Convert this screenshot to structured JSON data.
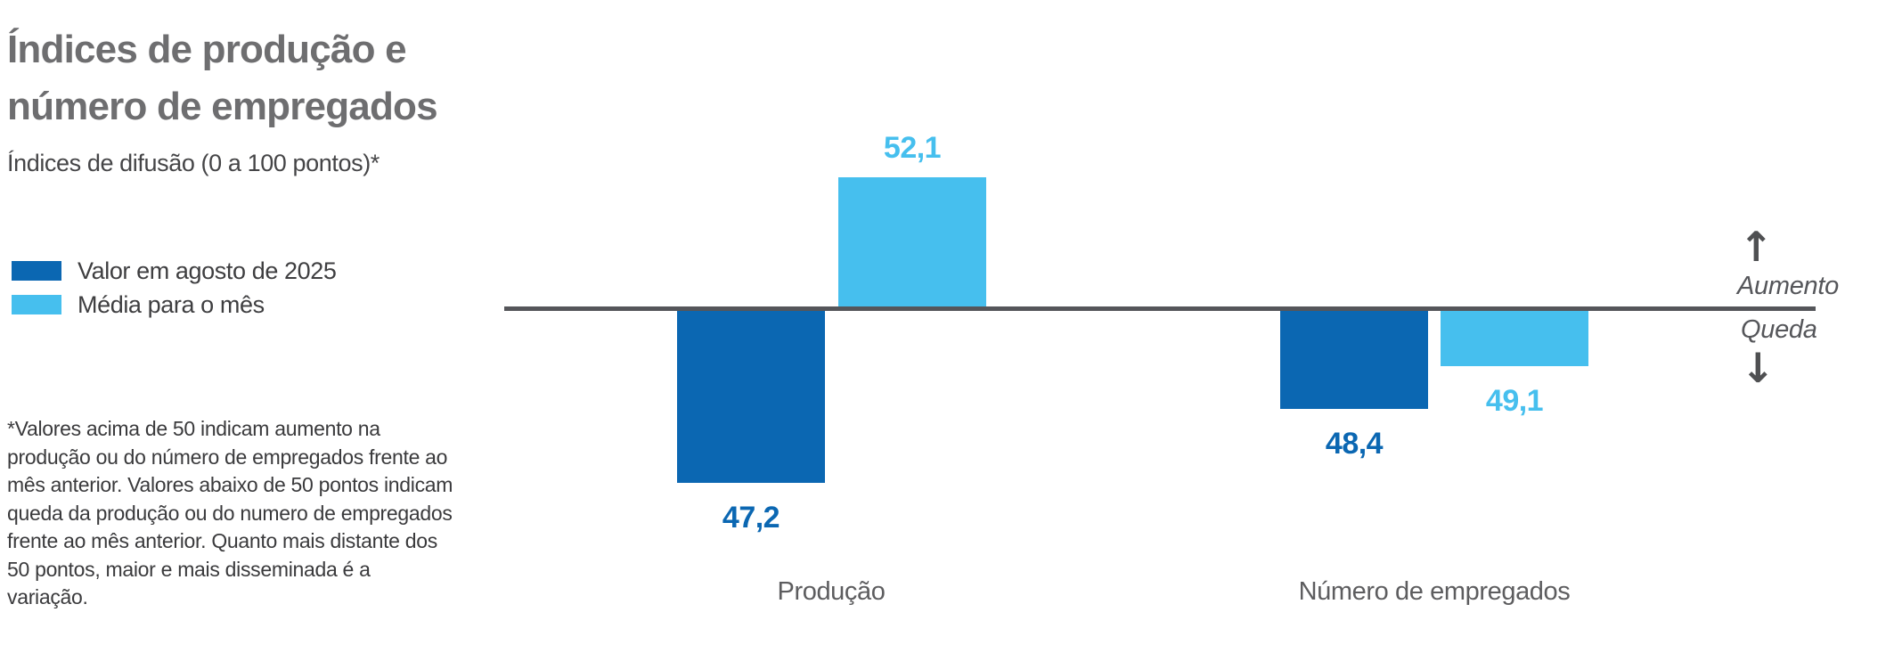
{
  "header": {
    "title": "Índices de produção e\nnúmero de empregados",
    "subtitle": "Índices de difusão (0 a 100 pontos)*"
  },
  "legend": {
    "items": [
      {
        "name": "august-value",
        "label": "Valor em agosto de 2025",
        "color": "#0b67b2"
      },
      {
        "name": "month-average",
        "label": "Média para o mês",
        "color": "#46bfee"
      }
    ]
  },
  "footnote": "*Valores acima de 50 indicam aumento na produção ou do número de empregados frente ao mês anterior. Valores abaixo de 50 pontos indicam queda da produção ou do numero de empregados frente ao mês anterior. Quanto mais distante dos 50 pontos, maior e mais disseminada é a variação.",
  "annotations": {
    "up_arrow": "↑",
    "increase": "Aumento",
    "decrease": "Queda",
    "down_arrow": "↓"
  },
  "chart_data": {
    "type": "bar",
    "orientation": "diverging-vertical",
    "baseline": 50,
    "ylim": [
      0,
      100
    ],
    "categories": [
      "Produção",
      "Número de empregados"
    ],
    "series": [
      {
        "name": "Valor em agosto de 2025",
        "color": "#0b67b2",
        "values": [
          47.2,
          48.4
        ],
        "labels": [
          "47,2",
          "48,4"
        ]
      },
      {
        "name": "Média para o mês",
        "color": "#46bfee",
        "values": [
          52.1,
          49.1
        ],
        "labels": [
          "52,1",
          "49,1"
        ]
      }
    ],
    "colors": {
      "baseline": "#55565a",
      "dark_blue": "#0b67b2",
      "light_blue": "#46bfee"
    }
  }
}
